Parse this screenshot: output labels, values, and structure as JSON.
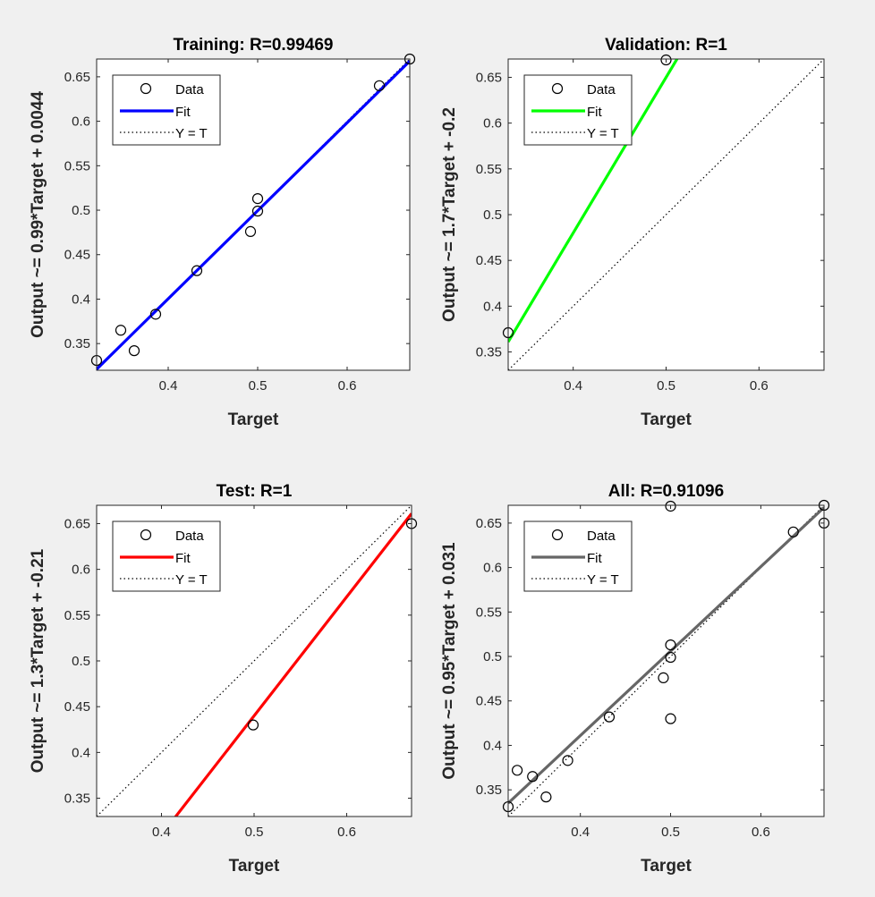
{
  "figure": {
    "background": "#f0f0f0",
    "plot_background": "#ffffff",
    "axis_color": "#262626"
  },
  "legend": {
    "entries": [
      "Data",
      "Fit",
      "Y = T"
    ],
    "placement": "top-left"
  },
  "chart_data": [
    {
      "type": "scatter",
      "title": "Training: R=0.99469",
      "xlabel": "Target",
      "ylabel": "Output ~= 0.99*Target + 0.0044",
      "xlim": [
        0.32,
        0.67
      ],
      "ylim": [
        0.32,
        0.67
      ],
      "xticks": [
        "0.4",
        "0.5",
        "0.6"
      ],
      "yticks": [
        "0.35",
        "0.4",
        "0.45",
        "0.5",
        "0.55",
        "0.6",
        "0.65"
      ],
      "fit_color": "#0000ff",
      "fit": {
        "slope": 0.99,
        "intercept": 0.0044
      },
      "points": [
        [
          0.32,
          0.331
        ],
        [
          0.347,
          0.365
        ],
        [
          0.362,
          0.342
        ],
        [
          0.386,
          0.383
        ],
        [
          0.432,
          0.432
        ],
        [
          0.492,
          0.476
        ],
        [
          0.5,
          0.499
        ],
        [
          0.5,
          0.513
        ],
        [
          0.636,
          0.64
        ],
        [
          0.67,
          0.67
        ]
      ]
    },
    {
      "type": "scatter",
      "title": "Validation: R=1",
      "xlabel": "Target",
      "ylabel": "Output ~= 1.7*Target + -0.2",
      "xlim": [
        0.33,
        0.67
      ],
      "ylim": [
        0.33,
        0.67
      ],
      "xticks": [
        "0.4",
        "0.5",
        "0.6"
      ],
      "yticks": [
        "0.35",
        "0.4",
        "0.45",
        "0.5",
        "0.55",
        "0.6",
        "0.65"
      ],
      "fit_color": "#00ff00",
      "fit": {
        "slope": 1.7,
        "intercept": -0.2
      },
      "points": [
        [
          0.33,
          0.371
        ],
        [
          0.5,
          0.669
        ]
      ]
    },
    {
      "type": "scatter",
      "title": "Test: R=1",
      "xlabel": "Target",
      "ylabel": "Output ~= 1.3*Target + -0.21",
      "xlim": [
        0.33,
        0.67
      ],
      "ylim": [
        0.33,
        0.67
      ],
      "xticks": [
        "0.4",
        "0.5",
        "0.6"
      ],
      "yticks": [
        "0.35",
        "0.4",
        "0.45",
        "0.5",
        "0.55",
        "0.6",
        "0.65"
      ],
      "fit_color": "#ff0000",
      "fit": {
        "slope": 1.3,
        "intercept": -0.21
      },
      "points": [
        [
          0.499,
          0.43
        ],
        [
          0.67,
          0.65
        ]
      ]
    },
    {
      "type": "scatter",
      "title": "All: R=0.91096",
      "xlabel": "Target",
      "ylabel": "Output ~= 0.95*Target + 0.031",
      "xlim": [
        0.32,
        0.67
      ],
      "ylim": [
        0.32,
        0.67
      ],
      "xticks": [
        "0.4",
        "0.5",
        "0.6"
      ],
      "yticks": [
        "0.35",
        "0.4",
        "0.45",
        "0.5",
        "0.55",
        "0.6",
        "0.65"
      ],
      "fit_color": "#666666",
      "fit": {
        "slope": 0.95,
        "intercept": 0.031
      },
      "points": [
        [
          0.32,
          0.331
        ],
        [
          0.33,
          0.372
        ],
        [
          0.347,
          0.365
        ],
        [
          0.362,
          0.342
        ],
        [
          0.386,
          0.383
        ],
        [
          0.432,
          0.432
        ],
        [
          0.492,
          0.476
        ],
        [
          0.5,
          0.43
        ],
        [
          0.5,
          0.499
        ],
        [
          0.5,
          0.513
        ],
        [
          0.5,
          0.669
        ],
        [
          0.636,
          0.64
        ],
        [
          0.67,
          0.67
        ],
        [
          0.67,
          0.65
        ]
      ]
    }
  ]
}
